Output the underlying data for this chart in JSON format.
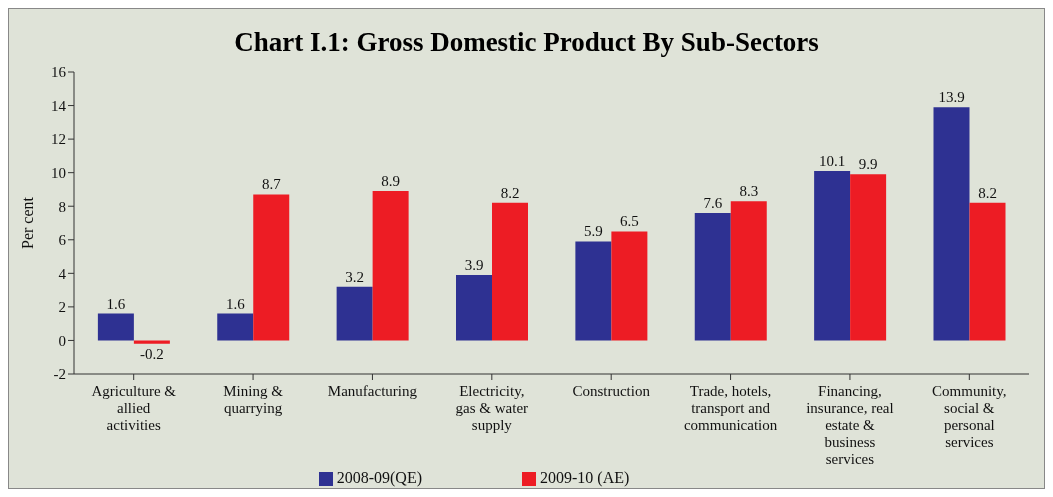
{
  "chart_data": {
    "type": "bar",
    "title": "Chart I.1: Gross Domestic Product By Sub-Sectors",
    "ylabel": "Per cent",
    "categories": [
      "Agriculture & allied activities",
      "Mining & quarrying",
      "Manufacturing",
      "Electricity, gas & water supply",
      "Construction",
      "Trade, hotels, transport and communication",
      "Financing, insurance, real estate & business services",
      "Community, social & personal services"
    ],
    "series": [
      {
        "name": "2008-09(QE)",
        "color": "#2e3192",
        "values": [
          1.6,
          1.6,
          3.2,
          3.9,
          5.9,
          7.6,
          10.1,
          13.9
        ]
      },
      {
        "name": "2009-10 (AE)",
        "color": "#ed1c24",
        "values": [
          -0.2,
          8.7,
          8.9,
          8.2,
          6.5,
          8.3,
          9.9,
          8.2
        ]
      }
    ],
    "ylim": [
      -2,
      16
    ],
    "yticks": [
      -2,
      0,
      2,
      4,
      6,
      8,
      10,
      12,
      14,
      16
    ],
    "grid": false,
    "legend": "bottom",
    "data_labels": true
  }
}
